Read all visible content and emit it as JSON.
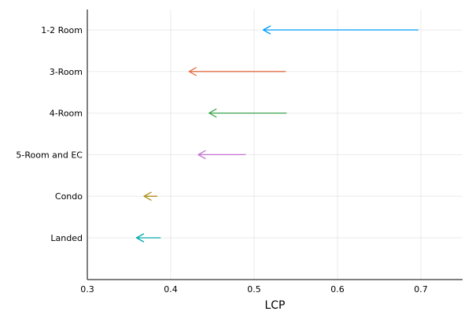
{
  "chart_data": {
    "type": "arrow",
    "title": "",
    "xlabel": "LCP",
    "ylabel": "",
    "xlim": [
      0.3,
      0.75
    ],
    "xticks": [
      0.3,
      0.4,
      0.5,
      0.6,
      0.7
    ],
    "xtick_labels": [
      "0.3",
      "0.4",
      "0.5",
      "0.6",
      "0.7"
    ],
    "categories": [
      "1-2 Room",
      "3-Room",
      "4-Room",
      "5-Room and EC",
      "Condo",
      "Landed"
    ],
    "grid": true,
    "legend": "none",
    "series": [
      {
        "category": "1-2 Room",
        "from": 0.697,
        "to": 0.511,
        "color": "#009AFA"
      },
      {
        "category": "3-Room",
        "from": 0.538,
        "to": 0.422,
        "color": "#E36F47"
      },
      {
        "category": "4-Room",
        "from": 0.539,
        "to": 0.446,
        "color": "#3EA44E"
      },
      {
        "category": "5-Room and EC",
        "from": 0.49,
        "to": 0.433,
        "color": "#C371D2"
      },
      {
        "category": "Condo",
        "from": 0.384,
        "to": 0.368,
        "color": "#AC8E18"
      },
      {
        "category": "Landed",
        "from": 0.388,
        "to": 0.359,
        "color": "#00A9AD"
      }
    ]
  }
}
